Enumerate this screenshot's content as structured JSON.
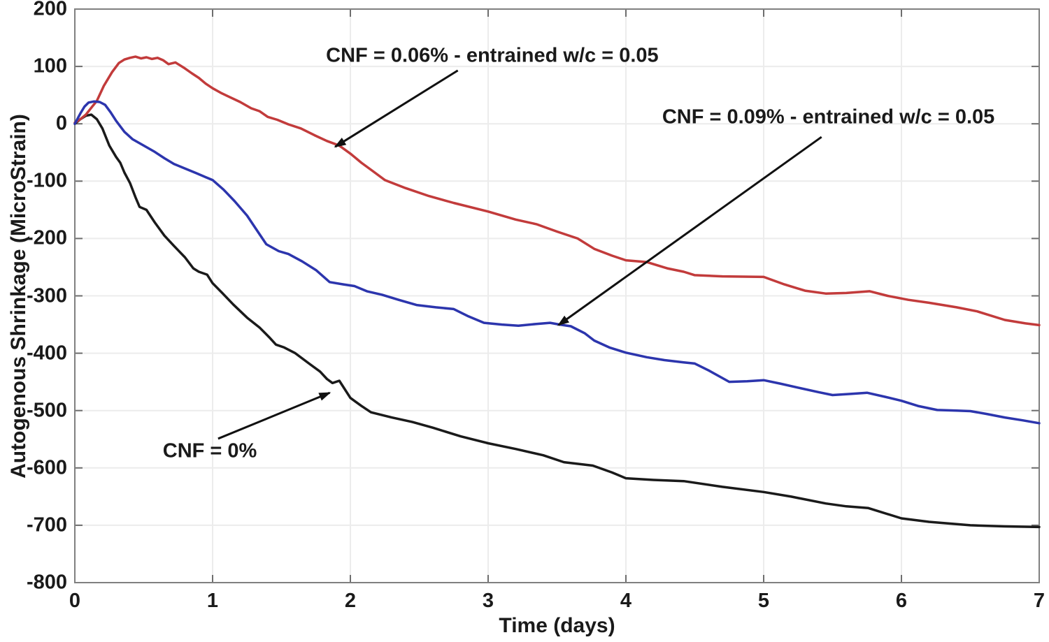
{
  "colors": {
    "background": "#ffffff",
    "grid": "#ececec",
    "axis_box": "#808080",
    "tick_mark": "#6e6e6e",
    "text": "#1a1a1a",
    "annotation_arrow": "#111111"
  },
  "chart_data": {
    "type": "line",
    "title": "",
    "xlabel": "Time (days)",
    "ylabel": "Autogenous Shrinkage (MicroStrain)",
    "xlim": [
      0,
      7
    ],
    "ylim": [
      -800,
      200
    ],
    "grid": true,
    "legend_position": "none - series identified by inline text annotations with arrows",
    "x_ticks": [
      0,
      1,
      2,
      3,
      4,
      5,
      6,
      7
    ],
    "x_tick_labels": [
      "0",
      "1",
      "2",
      "3",
      "4",
      "5",
      "6",
      "7"
    ],
    "y_ticks": [
      200,
      100,
      0,
      -100,
      -200,
      -300,
      -400,
      -500,
      -600,
      -700,
      -800
    ],
    "y_tick_labels": [
      "200",
      "100",
      "0",
      "-100",
      "-200",
      "-300",
      "-400",
      "-500",
      "-600",
      "-700",
      "-800"
    ],
    "series": [
      {
        "name": "CNF = 0%",
        "color": "#1a1a1a",
        "x": [
          0,
          0.04,
          0.08,
          0.12,
          0.16,
          0.2,
          0.25,
          0.3,
          0.33,
          0.36,
          0.4,
          0.44,
          0.47,
          0.52,
          0.58,
          0.65,
          0.72,
          0.8,
          0.86,
          0.9,
          0.96,
          1.0,
          1.07,
          1.15,
          1.25,
          1.34,
          1.41,
          1.46,
          1.52,
          1.6,
          1.7,
          1.78,
          1.83,
          1.87,
          1.92,
          2.0,
          2.08,
          2.15,
          2.3,
          2.45,
          2.6,
          2.8,
          3.0,
          3.2,
          3.4,
          3.55,
          3.76,
          3.9,
          4.0,
          4.2,
          4.42,
          4.7,
          5.0,
          5.2,
          5.45,
          5.6,
          5.76,
          6.0,
          6.2,
          6.5,
          6.75,
          7.0
        ],
        "y": [
          0,
          8,
          14,
          16,
          8,
          -8,
          -38,
          -58,
          -68,
          -85,
          -103,
          -128,
          -145,
          -150,
          -172,
          -195,
          -213,
          -233,
          -252,
          -258,
          -263,
          -278,
          -295,
          -315,
          -338,
          -355,
          -372,
          -385,
          -390,
          -400,
          -418,
          -432,
          -445,
          -452,
          -448,
          -478,
          -492,
          -503,
          -512,
          -520,
          -530,
          -545,
          -557,
          -567,
          -578,
          -590,
          -596,
          -608,
          -618,
          -621,
          -623,
          -633,
          -642,
          -650,
          -662,
          -667,
          -670,
          -688,
          -694,
          -700,
          -702,
          -703
        ]
      },
      {
        "name": "CNF = 0.06% - entrained w/c = 0.05",
        "color": "#c23b3b",
        "x": [
          0,
          0.04,
          0.08,
          0.12,
          0.16,
          0.21,
          0.27,
          0.32,
          0.36,
          0.4,
          0.44,
          0.48,
          0.52,
          0.56,
          0.6,
          0.64,
          0.68,
          0.73,
          0.79,
          0.85,
          0.9,
          0.95,
          1.0,
          1.06,
          1.12,
          1.2,
          1.28,
          1.34,
          1.4,
          1.47,
          1.55,
          1.64,
          1.74,
          1.83,
          1.92,
          2.0,
          2.08,
          2.16,
          2.25,
          2.4,
          2.57,
          2.75,
          3.0,
          3.2,
          3.35,
          3.5,
          3.65,
          3.77,
          3.9,
          4.0,
          4.15,
          4.3,
          4.42,
          4.5,
          4.7,
          5.0,
          5.15,
          5.3,
          5.45,
          5.6,
          5.77,
          5.9,
          6.05,
          6.2,
          6.4,
          6.55,
          6.75,
          6.9,
          7.0
        ],
        "y": [
          2,
          8,
          16,
          28,
          40,
          66,
          90,
          106,
          112,
          115,
          117,
          114,
          116,
          113,
          115,
          111,
          104,
          107,
          98,
          88,
          80,
          70,
          62,
          54,
          47,
          38,
          27,
          22,
          12,
          7,
          -1,
          -8,
          -20,
          -30,
          -38,
          -52,
          -68,
          -82,
          -98,
          -112,
          -126,
          -138,
          -153,
          -167,
          -175,
          -188,
          -200,
          -218,
          -230,
          -238,
          -241,
          -252,
          -258,
          -264,
          -266,
          -267,
          -280,
          -291,
          -296,
          -295,
          -292,
          -300,
          -307,
          -312,
          -320,
          -327,
          -342,
          -348,
          -351
        ]
      },
      {
        "name": "CNF = 0.09% - entrained w/c = 0.05",
        "color": "#2c35ad",
        "x": [
          0,
          0.04,
          0.07,
          0.1,
          0.14,
          0.18,
          0.22,
          0.26,
          0.3,
          0.36,
          0.42,
          0.5,
          0.58,
          0.65,
          0.72,
          0.8,
          0.88,
          0.95,
          1.0,
          1.08,
          1.16,
          1.25,
          1.32,
          1.39,
          1.48,
          1.55,
          1.65,
          1.75,
          1.85,
          1.95,
          2.03,
          2.12,
          2.23,
          2.35,
          2.48,
          2.62,
          2.75,
          2.85,
          2.97,
          3.1,
          3.22,
          3.35,
          3.45,
          3.52,
          3.6,
          3.7,
          3.77,
          3.88,
          4.0,
          4.15,
          4.28,
          4.42,
          4.5,
          4.6,
          4.75,
          4.88,
          5.0,
          5.12,
          5.25,
          5.4,
          5.5,
          5.63,
          5.75,
          5.88,
          6.0,
          6.12,
          6.26,
          6.4,
          6.5,
          6.62,
          6.75,
          6.88,
          7.0
        ],
        "y": [
          0,
          18,
          30,
          37,
          39,
          38,
          33,
          20,
          5,
          -14,
          -27,
          -38,
          -49,
          -60,
          -70,
          -78,
          -86,
          -93,
          -98,
          -115,
          -135,
          -160,
          -185,
          -210,
          -222,
          -227,
          -240,
          -255,
          -276,
          -280,
          -283,
          -292,
          -298,
          -307,
          -316,
          -320,
          -323,
          -335,
          -347,
          -350,
          -352,
          -349,
          -347,
          -350,
          -353,
          -365,
          -378,
          -390,
          -399,
          -407,
          -412,
          -416,
          -418,
          -430,
          -450,
          -449,
          -447,
          -453,
          -460,
          -468,
          -473,
          -471,
          -469,
          -476,
          -483,
          -492,
          -499,
          -500,
          -501,
          -506,
          -512,
          -517,
          -522
        ]
      }
    ],
    "annotations": [
      {
        "text": "CNF = 0.06% - entrained w/c = 0.05",
        "text_xy": [
          3.03,
          118
        ],
        "arrow_from": [
          2.78,
          93
        ],
        "arrow_to": [
          1.89,
          -40
        ]
      },
      {
        "text": "CNF = 0.09% - entrained w/c = 0.05",
        "text_xy": [
          5.47,
          11
        ],
        "arrow_from": [
          5.42,
          -23
        ],
        "arrow_to": [
          3.51,
          -351
        ]
      },
      {
        "text": "CNF = 0%",
        "text_xy": [
          0.98,
          -571
        ],
        "arrow_from": [
          1.04,
          -549
        ],
        "arrow_to": [
          1.85,
          -469
        ]
      }
    ]
  }
}
